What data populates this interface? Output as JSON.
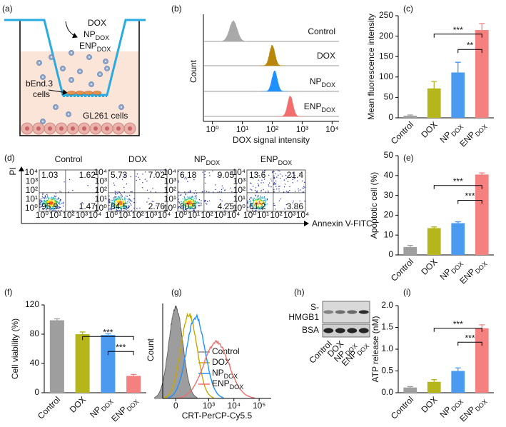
{
  "panel_labels": [
    "(a)",
    "(b)",
    "(c)",
    "(d)",
    "(e)",
    "(f)",
    "(g)",
    "(h)",
    "(i)"
  ],
  "schematic": {
    "treatments": [
      "DOX",
      {
        "base": "NP",
        "sub": "DOX"
      },
      {
        "base": "ENP",
        "sub": "DOX"
      }
    ],
    "upper_cells": [
      "bEnd.3",
      "cells"
    ],
    "lower_cells": "GL261 cells"
  },
  "chart_data": [
    {
      "type": "histogram-stack",
      "xlabel": "DOX signal intensity",
      "ylabel": "Count",
      "xscale": "log",
      "xlim": [
        0.5,
        17000
      ],
      "xticks": [
        {
          "value": 1,
          "label": "10⁰"
        },
        {
          "value": 10,
          "label": "10¹"
        },
        {
          "value": 100,
          "label": "10²"
        },
        {
          "value": 1000,
          "label": "10³"
        },
        {
          "value": 10000,
          "label": "10⁴"
        }
      ],
      "series": [
        {
          "name": "Control",
          "color": "#a9a9a9",
          "peak": 5
        },
        {
          "name": "DOX",
          "color": "#b8860b",
          "peak": 100
        },
        {
          "name": {
            "base": "NP",
            "sub": "DOX"
          },
          "color": "#1e90ff",
          "peak": 120
        },
        {
          "name": {
            "base": "ENP",
            "sub": "DOX"
          },
          "color": "#f26d6d",
          "peak": 400
        }
      ]
    },
    {
      "type": "bar",
      "ylabel": "Mean fluorescence intensity",
      "categories": [
        "Control",
        "DOX",
        {
          "base": "NP",
          "sub": "DOX"
        },
        {
          "base": "ENP",
          "sub": "DOX"
        }
      ],
      "values": [
        5,
        72,
        111,
        215
      ],
      "errors": [
        2,
        17,
        25,
        16
      ],
      "colors": [
        "#9e9e9e",
        "#b5b51c",
        "#4a9af0",
        "#f48080"
      ],
      "ylim": [
        0,
        250
      ],
      "yticks": [
        0,
        50,
        100,
        150,
        200,
        250
      ],
      "significance": [
        {
          "label": "***",
          "between": [
            1,
            3
          ]
        },
        {
          "label": "**",
          "between": [
            2,
            3
          ]
        }
      ]
    },
    {
      "type": "flow-quadrant",
      "xlabel": "Annexin V-FITC",
      "ylabel": "PI",
      "tick_labels": [
        "10⁰",
        "10¹",
        "10²",
        "10³",
        "10⁴"
      ],
      "panels": [
        {
          "title": "Control",
          "quadrants": [
            1.03,
            1.62,
            95.9,
            1.47
          ]
        },
        {
          "title": "DOX",
          "quadrants": [
            5.73,
            7.02,
            84.5,
            2.76
          ]
        },
        {
          "title": {
            "base": "NP",
            "sub": "DOX"
          },
          "quadrants": [
            6.18,
            9.05,
            80.5,
            4.25
          ]
        },
        {
          "title": {
            "base": "ENP",
            "sub": "DOX"
          },
          "quadrants": [
            13.6,
            21.4,
            61.2,
            3.86
          ]
        }
      ]
    },
    {
      "type": "bar",
      "ylabel": "Apoptotic cell (%)",
      "categories": [
        "Control",
        "DOX",
        {
          "base": "NP",
          "sub": "DOX"
        },
        {
          "base": "ENP",
          "sub": "DOX"
        }
      ],
      "values": [
        4,
        13.5,
        16,
        40.5
      ],
      "errors": [
        0.8,
        0.6,
        0.7,
        0.8
      ],
      "colors": [
        "#9e9e9e",
        "#b5b51c",
        "#4a9af0",
        "#f48080"
      ],
      "ylim": [
        0,
        50
      ],
      "yticks": [
        0,
        10,
        20,
        30,
        40,
        50
      ],
      "significance": [
        {
          "label": "***",
          "between": [
            1,
            3
          ]
        },
        {
          "label": "***",
          "between": [
            2,
            3
          ]
        }
      ]
    },
    {
      "type": "bar",
      "ylabel": "Cell viability (%)",
      "categories": [
        "Control",
        "DOX",
        {
          "base": "NP",
          "sub": "DOX"
        },
        {
          "base": "ENP",
          "sub": "DOX"
        }
      ],
      "values": [
        99,
        80,
        79,
        23
      ],
      "errors": [
        2,
        3,
        1.5,
        2
      ],
      "colors": [
        "#9e9e9e",
        "#b5b51c",
        "#4a9af0",
        "#f48080"
      ],
      "ylim": [
        0,
        120
      ],
      "yticks": [
        0,
        40,
        80,
        120
      ],
      "significance": [
        {
          "label": "***",
          "between": [
            1,
            3
          ]
        },
        {
          "label": "***",
          "between": [
            2,
            3
          ]
        }
      ]
    },
    {
      "type": "histogram-overlay",
      "xlabel": "CRT-PerCP-Cy5.5",
      "ylabel": "Count",
      "xscale": "asinh",
      "xlim": [
        -150,
        300000
      ],
      "xticks": [
        0,
        {
          "value": 1000,
          "label": "10³"
        },
        {
          "value": 10000,
          "label": "10⁴"
        },
        {
          "value": 100000,
          "label": "10⁵"
        }
      ],
      "series": [
        {
          "name": "Control",
          "color": "#8c8c8c",
          "peak": 0
        },
        {
          "name": "DOX",
          "color": "#c8a800",
          "peak": 150
        },
        {
          "name": {
            "base": "NP",
            "sub": "DOX"
          },
          "color": "#1e90ff",
          "peak": 300
        },
        {
          "name": {
            "base": "ENP",
            "sub": "DOX"
          },
          "color": "#f26d6d",
          "peak": 2000
        }
      ]
    },
    {
      "type": "bar",
      "ylabel": "ATP release (nM)",
      "categories": [
        "Control",
        "DOX",
        {
          "base": "NP",
          "sub": "DOX"
        },
        {
          "base": "ENP",
          "sub": "DOX"
        }
      ],
      "values": [
        0.12,
        0.25,
        0.5,
        1.48
      ],
      "errors": [
        0.02,
        0.05,
        0.07,
        0.08
      ],
      "colors": [
        "#9e9e9e",
        "#b5b51c",
        "#4a9af0",
        "#f48080"
      ],
      "ylim": [
        0,
        2
      ],
      "yticks": [
        {
          "value": 0,
          "label": "0.0"
        },
        0.5,
        {
          "value": 1,
          "label": "1.0"
        },
        1.5,
        {
          "value": 2,
          "label": "2.0"
        }
      ],
      "significance": [
        {
          "label": "***",
          "between": [
            1,
            3
          ]
        },
        {
          "label": "***",
          "between": [
            2,
            3
          ]
        }
      ]
    }
  ],
  "blot": {
    "rows": [
      [
        "S-",
        "HMGB1"
      ],
      [
        "BSA"
      ]
    ],
    "lanes": [
      "Control",
      "DOX",
      {
        "base": "NP",
        "sub": "DOX"
      },
      {
        "base": "ENP",
        "sub": "DOX"
      }
    ]
  }
}
